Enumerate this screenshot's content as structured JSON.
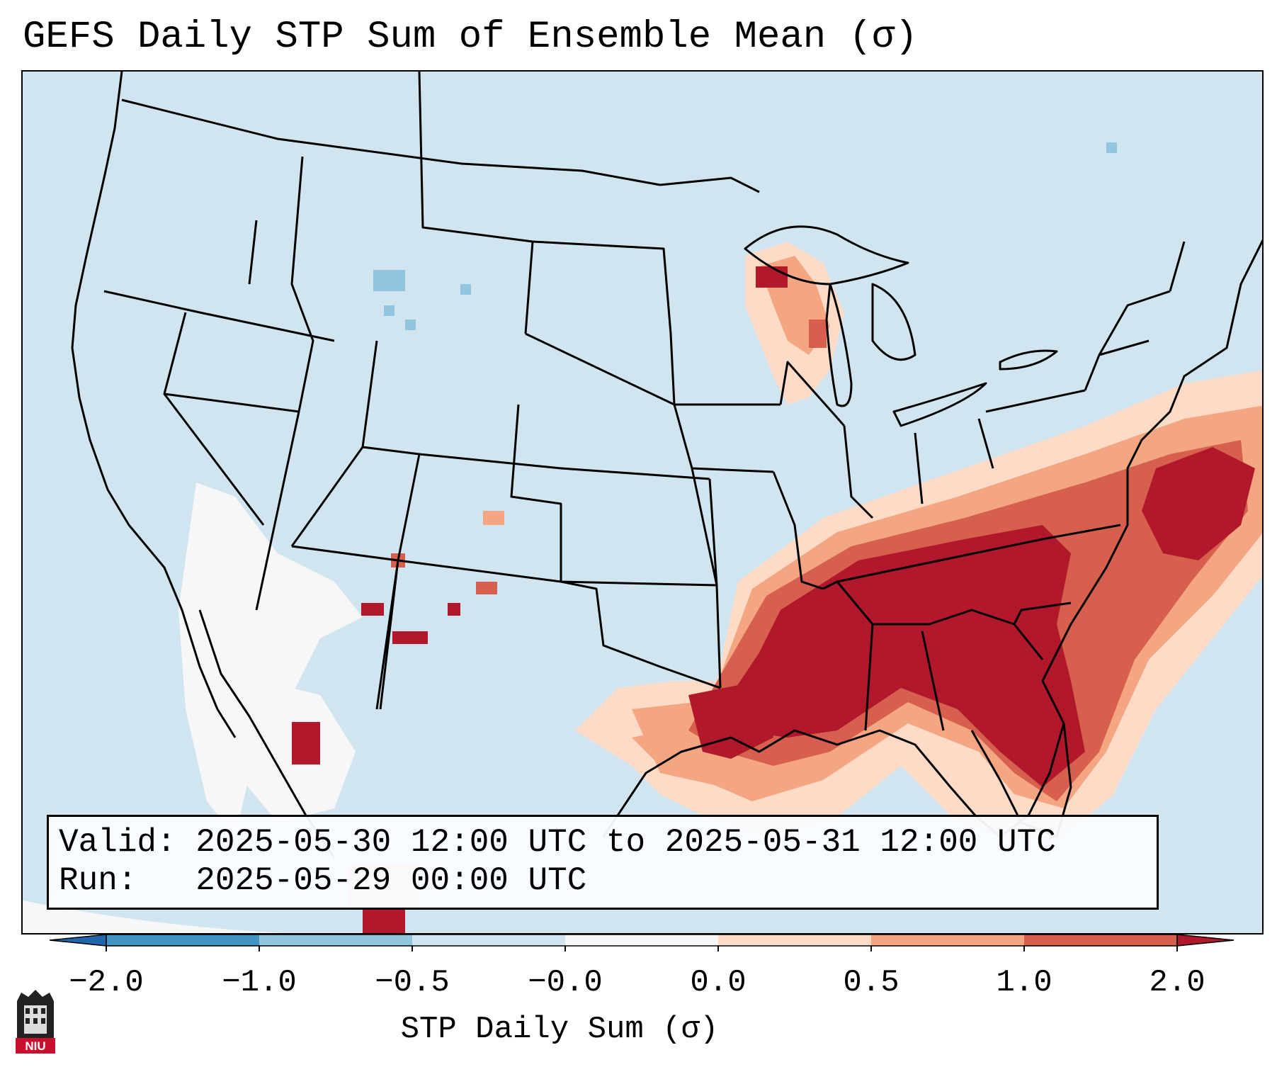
{
  "title": "GEFS Daily STP Sum of Ensemble Mean (σ)",
  "info": {
    "valid": "Valid: 2025-05-30 12:00 UTC to 2025-05-31 12:00 UTC",
    "run": "Run:   2025-05-29 00:00 UTC"
  },
  "colorbar": {
    "label": "STP Daily Sum (σ)",
    "ticks": [
      "−2.0",
      "−1.0",
      "−0.5",
      "−0.0",
      "0.0",
      "0.5",
      "1.0",
      "2.0"
    ],
    "colors": [
      "#2166ac",
      "#4393c3",
      "#92c5de",
      "#d1e5f0",
      "#f7f7f7",
      "#fddbc7",
      "#f4a582",
      "#d6604d",
      "#b2182b"
    ],
    "extend": "both"
  },
  "logo": {
    "text": "NIU"
  },
  "map": {
    "projection": "Lambert conformal, CONUS",
    "background_color": "#d1e5f0",
    "max_anomaly_region": "Southeast US (Gulf states to Carolinas)",
    "positive_regions": [
      "Southeast US",
      "Western Atlantic offshore",
      "Upper Great Lakes",
      "Gulf coast Texas/Louisiana",
      "New Mexico scattered"
    ],
    "near_zero_regions": [
      "Southwest desert",
      "Northern Mexico"
    ],
    "negative_regions": [
      "Wyoming scattered"
    ]
  }
}
